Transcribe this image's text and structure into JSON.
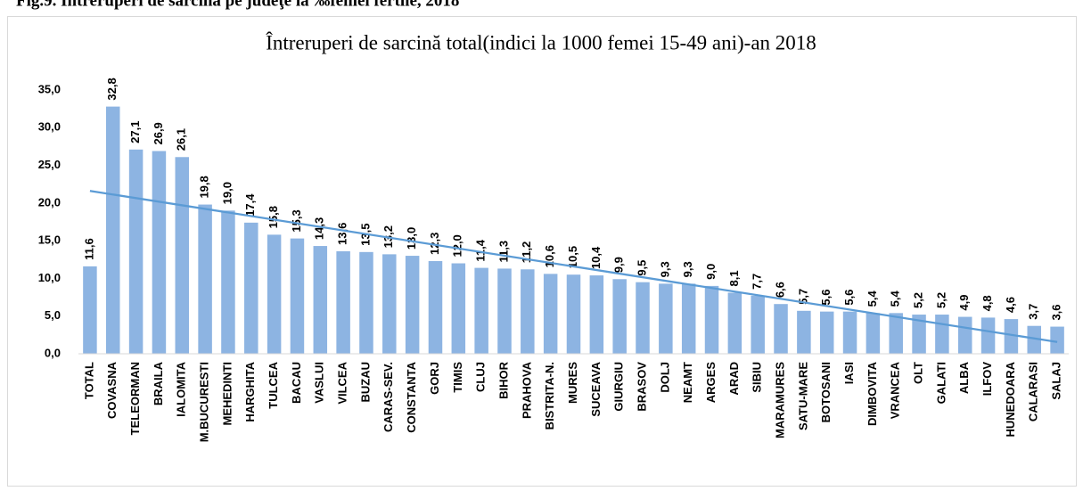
{
  "caption": "Fig.9. Întreruperi de sarcina pe judeţe la ‰femei fertile, 2018",
  "chart_data": {
    "type": "bar",
    "title": "Întreruperi de sarcină total(indici la 1000 femei 15-49 ani)-an 2018",
    "categories": [
      "TOTAL",
      "COVASNA",
      "TELEORMAN",
      "BRAILA",
      "IALOMITA",
      "M.BUCURESTI",
      "MEHEDINTI",
      "HARGHITA",
      "TULCEA",
      "BACAU",
      "VASLUI",
      "VILCEA",
      "BUZAU",
      "CARAS-SEV.",
      "CONSTANTA",
      "GORJ",
      "TIMIS",
      "CLUJ",
      "BIHOR",
      "PRAHOVA",
      "BISTRITA-N.",
      "MURES",
      "SUCEAVA",
      "GIURGIU",
      "BRASOV",
      "DOLJ",
      "NEAMT",
      "ARGES",
      "ARAD",
      "SIBIU",
      "MARAMURES",
      "SATU-MARE",
      "BOTOSANI",
      "IASI",
      "DIMBOVITA",
      "VRANCEA",
      "OLT",
      "GALATI",
      "ALBA",
      "ILFOV",
      "HUNEDOARA",
      "CALARASI",
      "SALAJ"
    ],
    "values": [
      11.6,
      32.8,
      27.1,
      26.9,
      26.1,
      19.8,
      19.0,
      17.4,
      15.8,
      15.3,
      14.3,
      13.6,
      13.5,
      13.2,
      13.0,
      12.3,
      12.0,
      11.4,
      11.3,
      11.2,
      10.6,
      10.5,
      10.4,
      9.9,
      9.5,
      9.3,
      9.3,
      9.0,
      8.1,
      7.7,
      6.6,
      5.7,
      5.6,
      5.6,
      5.4,
      5.4,
      5.2,
      5.2,
      4.9,
      4.8,
      4.6,
      3.7,
      3.6
    ],
    "value_labels": [
      "11,6",
      "32,8",
      "27,1",
      "26,9",
      "26,1",
      "19,8",
      "19,0",
      "17,4",
      "15,8",
      "15,3",
      "14,3",
      "13,6",
      "13,5",
      "13,2",
      "13,0",
      "12,3",
      "12,0",
      "11,4",
      "11,3",
      "11,2",
      "10,6",
      "10,5",
      "10,4",
      "9,9",
      "9,5",
      "9,3",
      "9,3",
      "9,0",
      "8,1",
      "7,7",
      "6,6",
      "5,7",
      "5,6",
      "5,6",
      "5,4",
      "5,4",
      "5,2",
      "5,2",
      "4,9",
      "4,8",
      "4,6",
      "3,7",
      "3,6"
    ],
    "color": "#8db4e2",
    "trendline": true,
    "trendline_color": "#5b9bd5",
    "ylim": [
      0,
      35
    ],
    "yticks": [
      {
        "value": 0,
        "label": "0,0"
      },
      {
        "value": 5,
        "label": "5,0"
      },
      {
        "value": 10,
        "label": "10,0"
      },
      {
        "value": 15,
        "label": "15,0"
      },
      {
        "value": 20,
        "label": "20,0"
      },
      {
        "value": 25,
        "label": "25,0"
      },
      {
        "value": 30,
        "label": "30,0"
      },
      {
        "value": 35,
        "label": "35,0"
      }
    ],
    "grid": false
  }
}
